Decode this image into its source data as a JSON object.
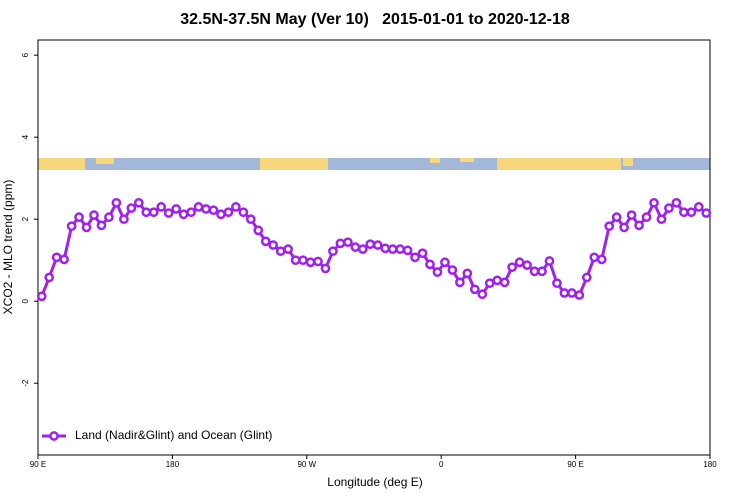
{
  "chart_data": {
    "type": "line",
    "title": "32.5N-37.5N May (Ver 10)   2015-01-01 to 2020-12-18",
    "x_label": "Longitude (deg E)",
    "y_label": "XCO2 - MLO trend (ppm)",
    "x": [
      92.5,
      97.5,
      102.5,
      107.5,
      112.5,
      117.5,
      122.5,
      127.5,
      132.5,
      137.5,
      142.5,
      147.5,
      152.5,
      157.5,
      162.5,
      167.5,
      172.5,
      177.5,
      182.5,
      187.5,
      192.5,
      197.5,
      202.5,
      207.5,
      212.5,
      217.5,
      222.5,
      227.5,
      232.5,
      237.5,
      242.5,
      247.5,
      252.5,
      257.5,
      262.5,
      267.5,
      272.5,
      277.5,
      282.5,
      287.5,
      292.5,
      297.5,
      302.5,
      307.5,
      312.5,
      317.5,
      322.5,
      327.5,
      332.5,
      337.5,
      342.5,
      347.5,
      352.5,
      357.5,
      362.5,
      367.5,
      372.5,
      377.5,
      382.5,
      387.5,
      392.5,
      397.5,
      402.5,
      407.5,
      412.5,
      417.5,
      422.5,
      427.5,
      432.5,
      437.5,
      442.5,
      447.5,
      452.5,
      457.5,
      462.5,
      467.5,
      472.5,
      477.5,
      482.5,
      487.5,
      492.5,
      497.5,
      502.5,
      507.5,
      512.5,
      517.5,
      522.5,
      527.5,
      532.5,
      537.5
    ],
    "series": [
      {
        "name": "Land (Nadir&Glint) and Ocean (Glint)",
        "color": "#a020f0",
        "values": [
          0.12,
          0.58,
          1.07,
          1.02,
          1.83,
          2.05,
          1.8,
          2.1,
          1.85,
          2.05,
          2.4,
          2.0,
          2.27,
          2.4,
          2.17,
          2.17,
          2.3,
          2.15,
          2.25,
          2.12,
          2.17,
          2.3,
          2.25,
          2.22,
          2.12,
          2.17,
          2.3,
          2.17,
          2.0,
          1.73,
          1.46,
          1.37,
          1.22,
          1.27,
          1.0,
          1.0,
          0.95,
          0.97,
          0.8,
          1.22,
          1.41,
          1.44,
          1.32,
          1.27,
          1.39,
          1.37,
          1.29,
          1.27,
          1.27,
          1.24,
          1.07,
          1.17,
          0.9,
          0.71,
          0.95,
          0.76,
          0.46,
          0.68,
          0.29,
          0.17,
          0.44,
          0.51,
          0.46,
          0.83,
          0.95,
          0.88,
          0.73,
          0.73,
          0.98,
          0.44,
          0.2,
          0.2,
          0.15,
          0.58,
          1.07,
          1.02,
          1.83,
          2.05,
          1.8,
          2.1,
          1.85,
          2.05,
          2.4,
          2.0,
          2.27,
          2.4,
          2.17,
          2.17,
          2.3,
          2.15
        ]
      }
    ],
    "xlim": [
      90,
      540
    ],
    "xticks": [
      {
        "value": 90,
        "label": "90 E"
      },
      180,
      {
        "value": 270,
        "label": "90 W"
      },
      {
        "value": 360,
        "label": "0"
      },
      {
        "value": 450,
        "label": "90 E"
      },
      {
        "value": 540,
        "label": "180"
      }
    ],
    "ylim": [
      -3.75,
      6.37
    ],
    "yticks": [
      -2,
      0,
      2,
      4,
      6
    ],
    "legend": "bottom-left"
  }
}
